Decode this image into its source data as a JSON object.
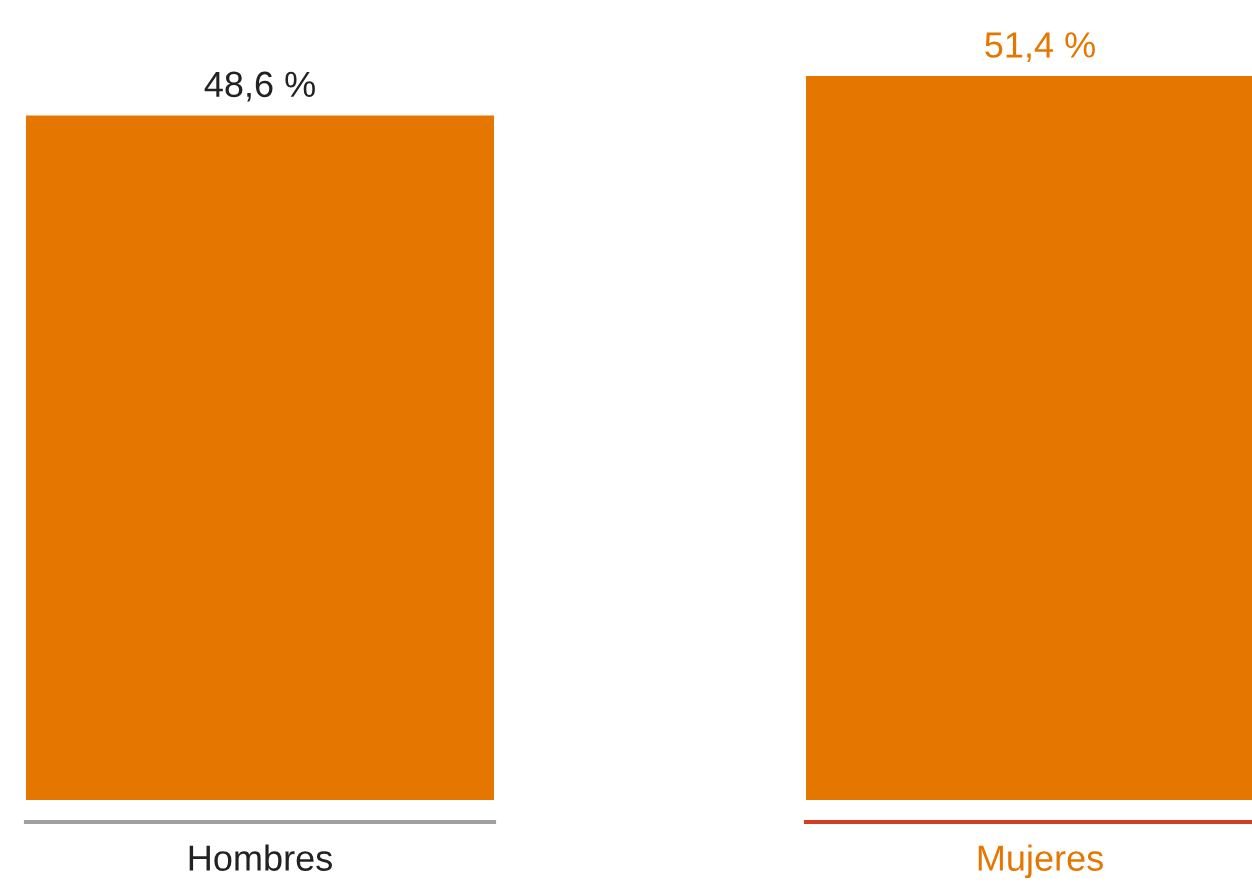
{
  "chart_data": {
    "type": "bar",
    "categories": [
      "Hombres",
      "Mujeres"
    ],
    "values": [
      48.6,
      51.4
    ],
    "colors": [
      "#e57700",
      "#e57700"
    ],
    "value_labels": [
      "48,6 %",
      "51,4 %"
    ],
    "grid": false,
    "legend": false
  }
}
